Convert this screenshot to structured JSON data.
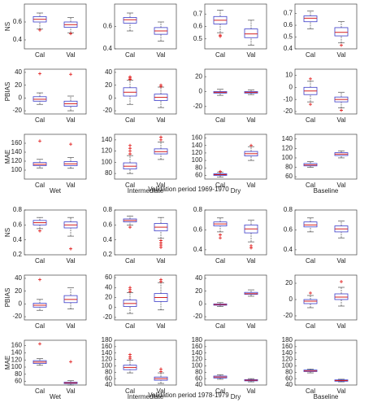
{
  "box_colors": {
    "box": "#3c3cc8",
    "median": "#d42020",
    "whisker": "#333333",
    "outlier": "#e01010"
  },
  "captions": [
    "Validation period 1969-1970",
    "Validation period 1978-1979"
  ],
  "chart_data": [
    {
      "type": "box",
      "ylabel": "NS",
      "categories": [
        "Cal",
        "Val"
      ],
      "ylim": [
        0.3,
        0.8
      ],
      "yticks": [
        0.4,
        0.6
      ],
      "boxes": [
        {
          "whiskers": [
            0.52,
            0.7
          ],
          "quartiles": [
            0.6,
            0.66
          ],
          "median": 0.63,
          "outliers": [
            0.51
          ]
        },
        {
          "whiskers": [
            0.48,
            0.65
          ],
          "quartiles": [
            0.54,
            0.6
          ],
          "median": 0.57,
          "outliers": [
            0.47
          ]
        }
      ]
    },
    {
      "type": "box",
      "categories": [
        "Cal",
        "Val"
      ],
      "ylim": [
        0.4,
        0.8
      ],
      "yticks": [
        0.4,
        0.6
      ],
      "boxes": [
        {
          "whiskers": [
            0.56,
            0.72
          ],
          "quartiles": [
            0.63,
            0.68
          ],
          "median": 0.66,
          "outliers": []
        },
        {
          "whiskers": [
            0.47,
            0.64
          ],
          "quartiles": [
            0.53,
            0.59
          ],
          "median": 0.56,
          "outliers": []
        }
      ]
    },
    {
      "type": "box",
      "categories": [
        "Cal",
        "Val"
      ],
      "ylim": [
        0.42,
        0.78
      ],
      "yticks": [
        0.5,
        0.6,
        0.7
      ],
      "boxes": [
        {
          "whiskers": [
            0.55,
            0.73
          ],
          "quartiles": [
            0.62,
            0.68
          ],
          "median": 0.65,
          "outliers": [
            0.52,
            0.53
          ]
        },
        {
          "whiskers": [
            0.45,
            0.65
          ],
          "quartiles": [
            0.51,
            0.58
          ],
          "median": 0.54,
          "outliers": []
        }
      ]
    },
    {
      "type": "box",
      "categories": [
        "Cal",
        "Val"
      ],
      "ylim": [
        0.4,
        0.78
      ],
      "yticks": [
        0.4,
        0.5,
        0.6,
        0.7
      ],
      "boxes": [
        {
          "whiskers": [
            0.57,
            0.72
          ],
          "quartiles": [
            0.63,
            0.68
          ],
          "median": 0.66,
          "outliers": []
        },
        {
          "whiskers": [
            0.45,
            0.63
          ],
          "quartiles": [
            0.51,
            0.58
          ],
          "median": 0.54,
          "outliers": [
            0.43
          ]
        }
      ]
    },
    {
      "type": "box",
      "ylabel": "PBIAS",
      "categories": [
        "Cal",
        "Val"
      ],
      "ylim": [
        -25,
        45
      ],
      "yticks": [
        -20,
        0,
        20,
        40
      ],
      "boxes": [
        {
          "whiskers": [
            -10,
            8
          ],
          "quartiles": [
            -5,
            2
          ],
          "median": -2,
          "outliers": [
            38
          ]
        },
        {
          "whiskers": [
            -20,
            3
          ],
          "quartiles": [
            -13,
            -5
          ],
          "median": -9,
          "outliers": [
            37
          ]
        }
      ]
    },
    {
      "type": "box",
      "categories": [
        "Cal",
        "Val"
      ],
      "ylim": [
        -25,
        45
      ],
      "yticks": [
        -20,
        0,
        20,
        40
      ],
      "boxes": [
        {
          "whiskers": [
            -10,
            28
          ],
          "quartiles": [
            3,
            16
          ],
          "median": 9,
          "outliers": [
            29,
            31,
            33
          ]
        },
        {
          "whiskers": [
            -15,
            17
          ],
          "quartiles": [
            -4,
            6
          ],
          "median": 1,
          "outliers": [
            18,
            20
          ]
        }
      ]
    },
    {
      "type": "box",
      "categories": [
        "Cal",
        "Val"
      ],
      "ylim": [
        -30,
        30
      ],
      "yticks": [
        -20,
        0,
        20
      ],
      "boxes": [
        {
          "whiskers": [
            -5,
            3
          ],
          "quartiles": [
            -2,
            0
          ],
          "median": -1,
          "outliers": []
        },
        {
          "whiskers": [
            -4,
            2
          ],
          "quartiles": [
            -2,
            0
          ],
          "median": -1,
          "outliers": []
        }
      ]
    },
    {
      "type": "box",
      "categories": [
        "Cal",
        "Val"
      ],
      "ylim": [
        -22,
        15
      ],
      "yticks": [
        -20,
        -10,
        0,
        10
      ],
      "boxes": [
        {
          "whiskers": [
            -12,
            5
          ],
          "quartiles": [
            -6,
            0
          ],
          "median": -3,
          "outliers": [
            7,
            -14
          ]
        },
        {
          "whiskers": [
            -17,
            -4
          ],
          "quartiles": [
            -12,
            -8
          ],
          "median": -10,
          "outliers": [
            -19
          ]
        }
      ]
    },
    {
      "type": "box",
      "ylabel": "MAE",
      "xlabel": "Wet",
      "categories": [
        "Cal",
        "Val"
      ],
      "ylim": [
        80,
        180
      ],
      "yticks": [
        100,
        120,
        140,
        160
      ],
      "boxes": [
        {
          "whiskers": [
            105,
            124
          ],
          "quartiles": [
            110,
            117
          ],
          "median": 113,
          "outliers": [
            165
          ]
        },
        {
          "whiskers": [
            104,
            128
          ],
          "quartiles": [
            110,
            119
          ],
          "median": 114,
          "outliers": [
            158
          ]
        }
      ]
    },
    {
      "type": "box",
      "xlabel": "Intermediate",
      "categories": [
        "Cal",
        "Val"
      ],
      "ylim": [
        70,
        150
      ],
      "yticks": [
        80,
        100,
        120,
        140
      ],
      "boxes": [
        {
          "whiskers": [
            80,
            112
          ],
          "quartiles": [
            88,
            99
          ],
          "median": 93,
          "outliers": [
            115,
            120,
            125,
            130
          ]
        },
        {
          "whiskers": [
            105,
            136
          ],
          "quartiles": [
            115,
            124
          ],
          "median": 119,
          "outliers": [
            140,
            145
          ]
        }
      ]
    },
    {
      "type": "box",
      "xlabel": "Dry",
      "categories": [
        "Cal",
        "Val"
      ],
      "ylim": [
        50,
        170
      ],
      "yticks": [
        60,
        80,
        100,
        120,
        140,
        160
      ],
      "boxes": [
        {
          "whiskers": [
            55,
            68
          ],
          "quartiles": [
            60,
            64
          ],
          "median": 62,
          "outliers": [
            70
          ]
        },
        {
          "whiskers": [
            100,
            137
          ],
          "quartiles": [
            112,
            124
          ],
          "median": 118,
          "outliers": [
            140
          ]
        }
      ]
    },
    {
      "type": "box",
      "xlabel": "Baseline",
      "categories": [
        "Cal",
        "Val"
      ],
      "ylim": [
        55,
        150
      ],
      "yticks": [
        60,
        80,
        100,
        120,
        140
      ],
      "boxes": [
        {
          "whiskers": [
            80,
            92
          ],
          "quartiles": [
            83,
            88
          ],
          "median": 85,
          "outliers": []
        },
        {
          "whiskers": [
            100,
            115
          ],
          "quartiles": [
            105,
            111
          ],
          "median": 108,
          "outliers": []
        }
      ]
    },
    {
      "type": "box",
      "ylabel": "NS",
      "categories": [
        "Cal",
        "Val"
      ],
      "ylim": [
        0.2,
        0.8
      ],
      "yticks": [
        0.2,
        0.4,
        0.6,
        0.8
      ],
      "boxes": [
        {
          "whiskers": [
            0.55,
            0.7
          ],
          "quartiles": [
            0.6,
            0.66
          ],
          "median": 0.63,
          "outliers": [
            0.52
          ]
        },
        {
          "whiskers": [
            0.45,
            0.7
          ],
          "quartiles": [
            0.56,
            0.64
          ],
          "median": 0.6,
          "outliers": [
            0.28
          ]
        }
      ]
    },
    {
      "type": "box",
      "categories": [
        "Cal",
        "Val"
      ],
      "ylim": [
        0.2,
        0.8
      ],
      "yticks": [
        0.2,
        0.4,
        0.6,
        0.8
      ],
      "boxes": [
        {
          "whiskers": [
            0.6,
            0.72
          ],
          "quartiles": [
            0.64,
            0.68
          ],
          "median": 0.66,
          "outliers": [
            0.57
          ]
        },
        {
          "whiskers": [
            0.42,
            0.7
          ],
          "quartiles": [
            0.52,
            0.62
          ],
          "median": 0.57,
          "outliers": [
            0.3,
            0.33,
            0.36,
            0.39
          ]
        }
      ]
    },
    {
      "type": "box",
      "categories": [
        "Cal",
        "Val"
      ],
      "ylim": [
        0.35,
        0.8
      ],
      "yticks": [
        0.4,
        0.6,
        0.8
      ],
      "boxes": [
        {
          "whiskers": [
            0.58,
            0.72
          ],
          "quartiles": [
            0.64,
            0.68
          ],
          "median": 0.66,
          "outliers": [
            0.52,
            0.55
          ]
        },
        {
          "whiskers": [
            0.48,
            0.7
          ],
          "quartiles": [
            0.57,
            0.65
          ],
          "median": 0.61,
          "outliers": [
            0.42,
            0.44
          ]
        }
      ]
    },
    {
      "type": "box",
      "categories": [
        "Cal",
        "Val"
      ],
      "ylim": [
        0.35,
        0.8
      ],
      "yticks": [
        0.4,
        0.6,
        0.8
      ],
      "boxes": [
        {
          "whiskers": [
            0.58,
            0.72
          ],
          "quartiles": [
            0.63,
            0.68
          ],
          "median": 0.65,
          "outliers": []
        },
        {
          "whiskers": [
            0.52,
            0.69
          ],
          "quartiles": [
            0.58,
            0.64
          ],
          "median": 0.61,
          "outliers": []
        }
      ]
    },
    {
      "type": "box",
      "ylabel": "PBIAS",
      "categories": [
        "Cal",
        "Val"
      ],
      "ylim": [
        -25,
        45
      ],
      "yticks": [
        -20,
        0,
        20,
        40
      ],
      "boxes": [
        {
          "whiskers": [
            -10,
            7
          ],
          "quartiles": [
            -5,
            1
          ],
          "median": -2,
          "outliers": [
            38
          ]
        },
        {
          "whiskers": [
            -8,
            25
          ],
          "quartiles": [
            2,
            13
          ],
          "median": 7,
          "outliers": []
        }
      ]
    },
    {
      "type": "box",
      "categories": [
        "Cal",
        "Val"
      ],
      "ylim": [
        -25,
        65
      ],
      "yticks": [
        -20,
        0,
        20,
        40,
        60
      ],
      "boxes": [
        {
          "whiskers": [
            -12,
            30
          ],
          "quartiles": [
            2,
            15
          ],
          "median": 8,
          "outliers": [
            32,
            36,
            40
          ]
        },
        {
          "whiskers": [
            -5,
            50
          ],
          "quartiles": [
            12,
            28
          ],
          "median": 20,
          "outliers": [
            52,
            56
          ]
        }
      ]
    },
    {
      "type": "box",
      "categories": [
        "Cal",
        "Val"
      ],
      "ylim": [
        -25,
        45
      ],
      "yticks": [
        -20,
        0,
        20,
        40
      ],
      "boxes": [
        {
          "whiskers": [
            -4,
            2
          ],
          "quartiles": [
            -2,
            0
          ],
          "median": -1,
          "outliers": []
        },
        {
          "whiskers": [
            12,
            22
          ],
          "quartiles": [
            15,
            18
          ],
          "median": 16,
          "outliers": []
        }
      ]
    },
    {
      "type": "box",
      "categories": [
        "Cal",
        "Val"
      ],
      "ylim": [
        -25,
        30
      ],
      "yticks": [
        -20,
        0,
        20
      ],
      "boxes": [
        {
          "whiskers": [
            -10,
            5
          ],
          "quartiles": [
            -5,
            0
          ],
          "median": -2,
          "outliers": [
            8
          ]
        },
        {
          "whiskers": [
            -8,
            15
          ],
          "quartiles": [
            0,
            7
          ],
          "median": 3,
          "outliers": [
            22
          ]
        }
      ]
    },
    {
      "type": "box",
      "ylabel": "MAE",
      "xlabel": "Wet",
      "categories": [
        "Cal",
        "Val"
      ],
      "ylim": [
        50,
        175
      ],
      "yticks": [
        60,
        80,
        100,
        120,
        140,
        160
      ],
      "boxes": [
        {
          "whiskers": [
            105,
            124
          ],
          "quartiles": [
            110,
            118
          ],
          "median": 114,
          "outliers": [
            165
          ]
        },
        {
          "whiskers": [
            50,
            62
          ],
          "quartiles": [
            54,
            58
          ],
          "median": 56,
          "outliers": [
            115
          ]
        }
      ]
    },
    {
      "type": "box",
      "xlabel": "Intermediate",
      "categories": [
        "Cal",
        "Val"
      ],
      "ylim": [
        40,
        180
      ],
      "yticks": [
        40,
        60,
        80,
        100,
        120,
        140,
        160,
        180
      ],
      "boxes": [
        {
          "whiskers": [
            78,
            118
          ],
          "quartiles": [
            88,
            102
          ],
          "median": 95,
          "outliers": [
            122,
            128,
            135
          ]
        },
        {
          "whiskers": [
            45,
            78
          ],
          "quartiles": [
            55,
            65
          ],
          "median": 60,
          "outliers": [
            82,
            90
          ]
        }
      ]
    },
    {
      "type": "box",
      "xlabel": "Dry",
      "categories": [
        "Cal",
        "Val"
      ],
      "ylim": [
        40,
        180
      ],
      "yticks": [
        40,
        60,
        80,
        100,
        120,
        140,
        160,
        180
      ],
      "boxes": [
        {
          "whiskers": [
            58,
            72
          ],
          "quartiles": [
            62,
            68
          ],
          "median": 65,
          "outliers": []
        },
        {
          "whiskers": [
            50,
            60
          ],
          "quartiles": [
            53,
            57
          ],
          "median": 55,
          "outliers": []
        }
      ]
    },
    {
      "type": "box",
      "xlabel": "Baseline",
      "categories": [
        "Cal",
        "Val"
      ],
      "ylim": [
        40,
        180
      ],
      "yticks": [
        40,
        60,
        80,
        100,
        120,
        140,
        160,
        180
      ],
      "boxes": [
        {
          "whiskers": [
            78,
            90
          ],
          "quartiles": [
            82,
            87
          ],
          "median": 84,
          "outliers": []
        },
        {
          "whiskers": [
            50,
            58
          ],
          "quartiles": [
            52,
            56
          ],
          "median": 54,
          "outliers": []
        }
      ]
    }
  ]
}
